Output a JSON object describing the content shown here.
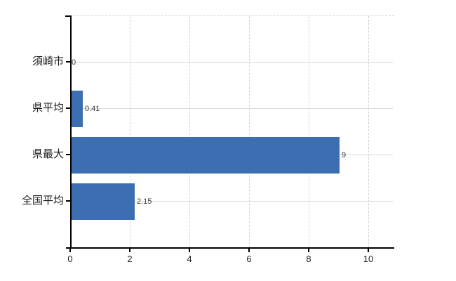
{
  "chart_data": {
    "type": "bar",
    "orientation": "horizontal",
    "title": "",
    "categories": [
      "須崎市",
      "県平均",
      "県最大",
      "全国平均"
    ],
    "values": [
      0,
      0.41,
      9,
      2.15
    ],
    "value_labels": [
      "0",
      "0.41",
      "9",
      "2.15"
    ],
    "x_ticks": [
      "0",
      "2",
      "4",
      "6",
      "8",
      "10"
    ],
    "x_tick_values": [
      0,
      2,
      4,
      6,
      8,
      10
    ],
    "xlim": [
      0,
      10.87
    ],
    "legend": "none",
    "grid": {
      "horizontal": "solid lines at category centers",
      "vertical": "dashed lines at x ticks",
      "top_border": "dashed"
    },
    "colors": {
      "bar": "#3d6eb2",
      "h_grid": "#d7dcd7",
      "v_grid": "#d4d0d4",
      "axis": "#000000",
      "value_text": "#3a3a3a",
      "category_text": "#1a1a1a",
      "tick_text": "#222222",
      "background": "#ffffff"
    }
  }
}
